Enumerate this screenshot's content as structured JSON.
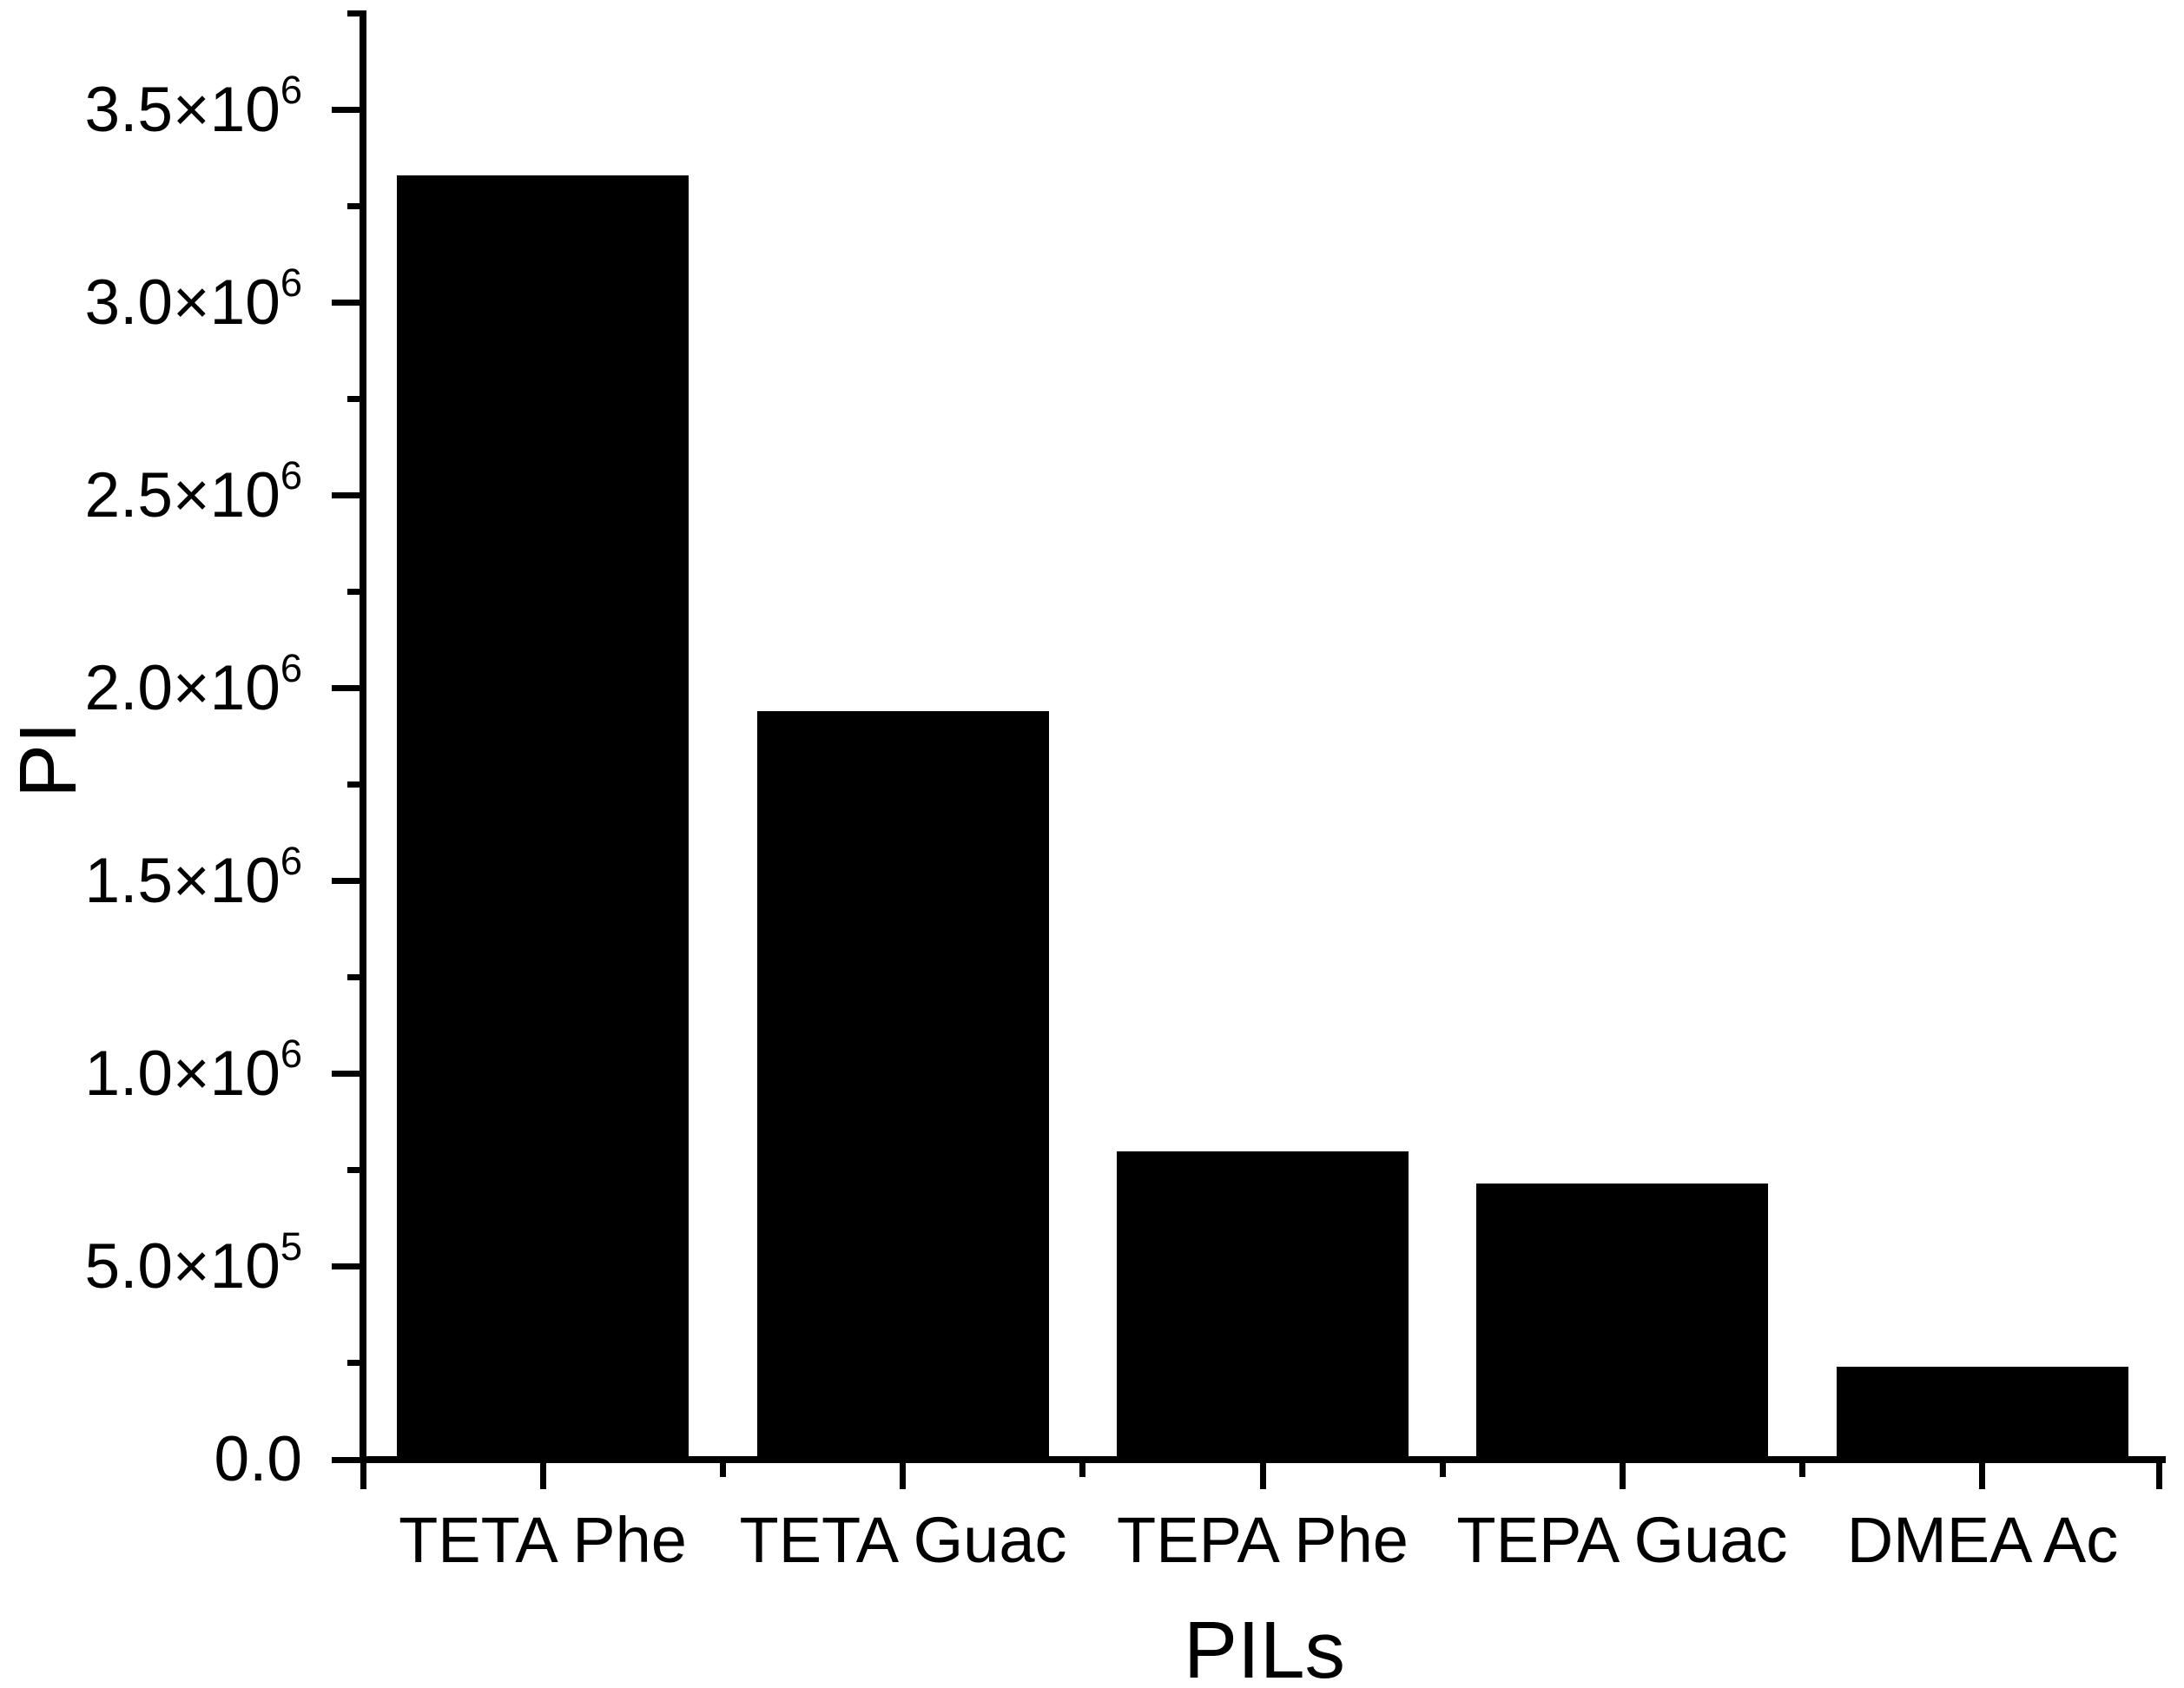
{
  "chart_data": {
    "type": "bar",
    "title": "",
    "xlabel": "PILs",
    "ylabel": "PI",
    "categories": [
      "TETA Phe",
      "TETA Guac",
      "TEPA Phe",
      "TEPA Guac",
      "DMEA Ac"
    ],
    "values": [
      3330000,
      1940000,
      800000,
      715000,
      240000
    ],
    "ylim": [
      0,
      3500000
    ],
    "ytick_step": 500000,
    "yminor_step": 250000,
    "ytick_labels": [
      "0.0",
      "5.0×10^5",
      "1.0×10^6",
      "1.5×10^6",
      "2.0×10^6",
      "2.5×10^6",
      "3.0×10^6",
      "3.5×10^6"
    ],
    "bar_color": "#000000",
    "axis_color": "#000000",
    "background_color": "#ffffff",
    "grid": false,
    "legend": null
  }
}
